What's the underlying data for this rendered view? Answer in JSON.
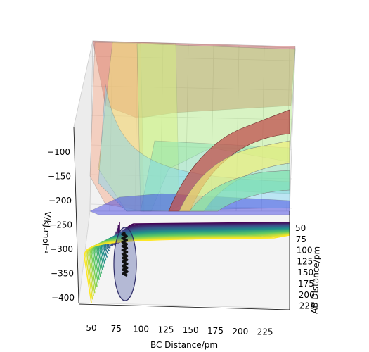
{
  "chart_data": {
    "type": "surface-3d",
    "title": "",
    "xlabel": "BC Distance/pm",
    "ylabel": "AB Distance/pm",
    "zlabel": "V/kJ.mol$^{-1}$",
    "zlabel_display": "V/kJ.mol⁻¹",
    "x_ticks": [
      "50",
      "75",
      "100",
      "125",
      "150",
      "175",
      "200",
      "225"
    ],
    "y_ticks": [
      "50",
      "75",
      "100",
      "125",
      "150",
      "175",
      "200",
      "225"
    ],
    "z_ticks": [
      "−100",
      "−150",
      "−200",
      "−250",
      "−300",
      "−350",
      "−400"
    ],
    "xlim": [
      40,
      240
    ],
    "ylim": [
      40,
      240
    ],
    "zlim": [
      -420,
      -80
    ],
    "surface_bands": [
      {
        "level": -100,
        "color": "#c0504d"
      },
      {
        "level": -150,
        "color": "#f4a582"
      },
      {
        "level": -200,
        "color": "#f0f07a"
      },
      {
        "level": -250,
        "color": "#b8f58a"
      },
      {
        "level": -300,
        "color": "#7ee0b0"
      },
      {
        "level": -350,
        "color": "#7ad4f5"
      },
      {
        "level": -400,
        "color": "#3030e0"
      }
    ],
    "contour_colormap": "viridis",
    "trajectory_color": "#111111",
    "grid": true
  }
}
